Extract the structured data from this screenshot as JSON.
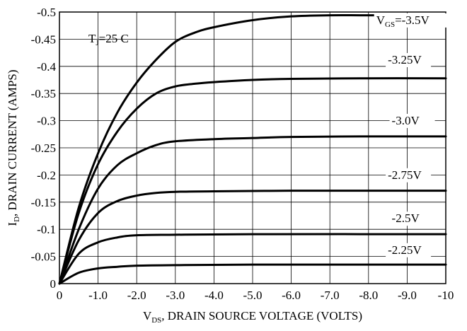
{
  "chart_data": {
    "type": "line",
    "title": "",
    "xlabel": "V",
    "xlabel_sub": "DS",
    "xlabel_rest": ", DRAIN SOURCE VOLTAGE (VOLTS)",
    "ylabel": "I",
    "ylabel_sub": "D",
    "ylabel_rest": ", DRAIN CURRENT (AMPS)",
    "xlim": [
      0,
      -10
    ],
    "ylim": [
      0,
      -0.5
    ],
    "grid": true,
    "x_ticks": [
      0,
      -1,
      -2,
      -3,
      -4,
      -5,
      -6,
      -7,
      -8,
      -9,
      -10
    ],
    "x_tick_labels": [
      "0",
      "-1.0",
      "-2.0",
      "-3.0",
      "-4.0",
      "-5.0",
      "-6.0",
      "-7.0",
      "-8.0",
      "-9.0",
      "-10"
    ],
    "y_ticks": [
      0,
      -0.05,
      -0.1,
      -0.15,
      -0.2,
      -0.25,
      -0.3,
      -0.35,
      -0.4,
      -0.45,
      -0.5
    ],
    "y_tick_labels": [
      "0",
      "-0.05",
      "-0.1",
      "-0.15",
      "-0.2",
      "-0.25",
      "-0.3",
      "-0.35",
      "-0.4",
      "-0.45",
      "-0.5"
    ],
    "annotation": {
      "prefix": "T",
      "sub": "J",
      "rest": "=25 C"
    },
    "series": [
      {
        "name": "V",
        "name_sub": "GS",
        "name_rest": "=-3.5V",
        "label_at": [
          -8.2,
          -0.478
        ],
        "points": [
          [
            0,
            0
          ],
          [
            -0.5,
            -0.14
          ],
          [
            -1.0,
            -0.24
          ],
          [
            -1.5,
            -0.315
          ],
          [
            -2.0,
            -0.37
          ],
          [
            -2.5,
            -0.412
          ],
          [
            -3.0,
            -0.445
          ],
          [
            -3.5,
            -0.462
          ],
          [
            -4.0,
            -0.472
          ],
          [
            -5.0,
            -0.485
          ],
          [
            -6.0,
            -0.492
          ],
          [
            -7.0,
            -0.494
          ],
          [
            -8.0,
            -0.494
          ],
          [
            -10.0,
            -0.494
          ]
        ]
      },
      {
        "name": "-3.25V",
        "label_at": [
          -8.5,
          -0.405
        ],
        "points": [
          [
            0,
            0
          ],
          [
            -0.5,
            -0.13
          ],
          [
            -1.0,
            -0.22
          ],
          [
            -1.5,
            -0.28
          ],
          [
            -2.0,
            -0.322
          ],
          [
            -2.5,
            -0.35
          ],
          [
            -3.0,
            -0.363
          ],
          [
            -3.5,
            -0.368
          ],
          [
            -4.0,
            -0.371
          ],
          [
            -5.0,
            -0.375
          ],
          [
            -6.0,
            -0.377
          ],
          [
            -8.0,
            -0.378
          ],
          [
            -10.0,
            -0.378
          ]
        ]
      },
      {
        "name": "-3.0V",
        "label_at": [
          -8.6,
          -0.293
        ],
        "points": [
          [
            0,
            0
          ],
          [
            -0.5,
            -0.1
          ],
          [
            -1.0,
            -0.175
          ],
          [
            -1.5,
            -0.218
          ],
          [
            -2.0,
            -0.24
          ],
          [
            -2.5,
            -0.255
          ],
          [
            -3.0,
            -0.262
          ],
          [
            -4.0,
            -0.266
          ],
          [
            -5.0,
            -0.268
          ],
          [
            -6.0,
            -0.27
          ],
          [
            -8.0,
            -0.271
          ],
          [
            -10.0,
            -0.271
          ]
        ]
      },
      {
        "name": "-2.75V",
        "label_at": [
          -8.5,
          -0.193
        ],
        "points": [
          [
            0,
            0
          ],
          [
            -0.5,
            -0.08
          ],
          [
            -1.0,
            -0.13
          ],
          [
            -1.5,
            -0.152
          ],
          [
            -2.0,
            -0.162
          ],
          [
            -2.5,
            -0.167
          ],
          [
            -3.0,
            -0.169
          ],
          [
            -4.0,
            -0.17
          ],
          [
            -6.0,
            -0.171
          ],
          [
            -8.0,
            -0.171
          ],
          [
            -10.0,
            -0.171
          ]
        ]
      },
      {
        "name": "-2.5V",
        "label_at": [
          -8.6,
          -0.113
        ],
        "points": [
          [
            0,
            0
          ],
          [
            -0.5,
            -0.055
          ],
          [
            -1.0,
            -0.076
          ],
          [
            -1.5,
            -0.085
          ],
          [
            -2.0,
            -0.089
          ],
          [
            -3.0,
            -0.09
          ],
          [
            -5.0,
            -0.091
          ],
          [
            -10.0,
            -0.091
          ]
        ]
      },
      {
        "name": "-2.25V",
        "label_at": [
          -8.5,
          -0.055
        ],
        "points": [
          [
            0,
            0
          ],
          [
            -0.5,
            -0.02
          ],
          [
            -1.0,
            -0.028
          ],
          [
            -1.5,
            -0.031
          ],
          [
            -2.0,
            -0.033
          ],
          [
            -3.0,
            -0.034
          ],
          [
            -5.0,
            -0.035
          ],
          [
            -10.0,
            -0.035
          ]
        ]
      }
    ]
  }
}
